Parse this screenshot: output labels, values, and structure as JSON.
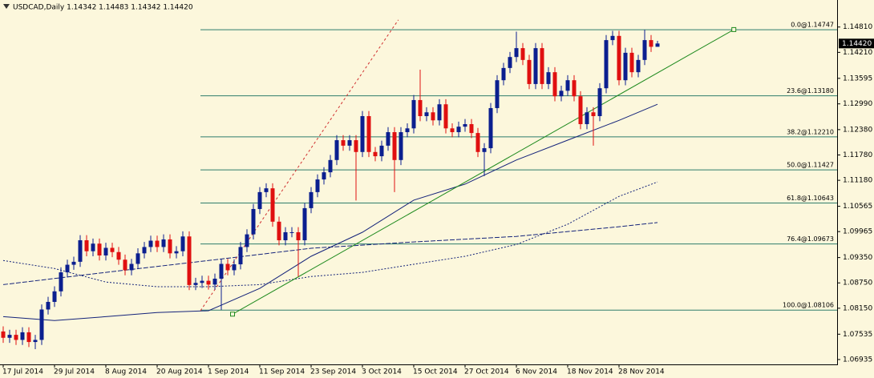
{
  "chart_data": {
    "type": "candlestick",
    "header": "USDCAD,Daily  1.14342 1.14483 1.14342 1.14420",
    "categories": [
      "17 Jul 2014",
      null,
      null,
      null,
      null,
      null,
      null,
      null,
      "29 Jul 2014",
      null,
      null,
      null,
      null,
      null,
      null,
      null,
      "8 Aug 2014",
      null,
      null,
      null,
      null,
      null,
      null,
      null,
      "20 Aug 2014",
      null,
      null,
      null,
      null,
      null,
      null,
      null,
      "1 Sep 2014",
      null,
      null,
      null,
      null,
      null,
      null,
      null,
      "11 Sep 2014",
      null,
      null,
      null,
      null,
      null,
      null,
      null,
      "23 Sep 2014",
      null,
      null,
      null,
      null,
      null,
      null,
      null,
      "3 Oct 2014",
      null,
      null,
      null,
      null,
      null,
      null,
      null,
      "15 Oct 2014",
      null,
      null,
      null,
      null,
      null,
      null,
      null,
      "27 Oct 2014",
      null,
      null,
      null,
      null,
      null,
      null,
      null,
      "6 Nov 2014",
      null,
      null,
      null,
      null,
      null,
      null,
      null,
      "18 Nov 2014",
      null,
      null,
      null,
      null,
      null,
      null,
      null,
      "28 Nov 2014",
      null,
      null,
      null,
      null,
      null,
      null
    ],
    "open": [
      1.076,
      1.0745,
      1.0752,
      1.074,
      1.0758,
      1.0735,
      1.074,
      1.0812,
      1.083,
      1.0855,
      1.09,
      1.0918,
      1.0925,
      1.0976,
      1.095,
      1.0968,
      1.094,
      1.0958,
      1.0948,
      1.093,
      1.0905,
      1.092,
      1.0945,
      1.096,
      1.0975,
      1.096,
      1.0978,
      1.0945,
      1.095,
      1.0985,
      1.087,
      1.0875,
      1.088,
      1.0871,
      1.0885,
      1.092,
      1.0905,
      1.0919,
      1.096,
      1.099,
      1.105,
      1.109,
      1.1099,
      1.102,
      1.0976,
      1.0995,
      1.0995,
      1.0976,
      1.1052,
      1.109,
      1.112,
      1.1137,
      1.1166,
      1.1213,
      1.12,
      1.1213,
      1.1185,
      1.127,
      1.1185,
      1.1175,
      1.12,
      1.1232,
      1.1166,
      1.1232,
      1.1241,
      1.1308,
      1.127,
      1.1279,
      1.126,
      1.1298,
      1.1241,
      1.1232,
      1.1245,
      1.1251,
      1.123,
      1.1185,
      1.1194,
      1.1289,
      1.1355,
      1.1384,
      1.141,
      1.1431,
      1.1403,
      1.1346,
      1.1431,
      1.1346,
      1.1374,
      1.1317,
      1.133,
      1.1355,
      1.1317,
      1.1251,
      1.1279,
      1.127,
      1.1336,
      1.145,
      1.146,
      1.1355,
      1.142,
      1.1374,
      1.1403,
      1.145,
      1.14342
    ],
    "high": [
      1.0772,
      1.0764,
      1.0764,
      1.077,
      1.077,
      1.0752,
      1.0824,
      1.0842,
      1.0867,
      1.0912,
      1.093,
      1.0937,
      1.0988,
      1.0988,
      1.098,
      1.098,
      1.097,
      1.097,
      1.096,
      1.0942,
      1.0932,
      1.0957,
      1.0972,
      1.0987,
      1.0987,
      1.099,
      1.099,
      1.0962,
      1.0997,
      1.0997,
      1.0887,
      1.0892,
      1.0892,
      1.0897,
      1.0932,
      1.0932,
      1.0931,
      1.0972,
      1.1002,
      1.1062,
      1.1102,
      1.1111,
      1.1111,
      1.1032,
      1.1007,
      1.1007,
      1.1007,
      1.1064,
      1.1102,
      1.1132,
      1.1149,
      1.1178,
      1.1225,
      1.1225,
      1.1225,
      1.1225,
      1.1282,
      1.1282,
      1.1197,
      1.1212,
      1.1244,
      1.1244,
      1.1244,
      1.1253,
      1.132,
      1.138,
      1.1291,
      1.1291,
      1.131,
      1.131,
      1.1253,
      1.1257,
      1.1263,
      1.1263,
      1.1242,
      1.1206,
      1.1301,
      1.1367,
      1.1396,
      1.1422,
      1.147,
      1.1443,
      1.1415,
      1.1443,
      1.1443,
      1.1386,
      1.1386,
      1.1342,
      1.1367,
      1.1367,
      1.1329,
      1.1291,
      1.1291,
      1.1348,
      1.1462,
      1.1472,
      1.1472,
      1.1432,
      1.1432,
      1.1415,
      1.14747,
      1.1462,
      1.14483
    ],
    "low": [
      1.0733,
      1.0733,
      1.0728,
      1.0728,
      1.0723,
      1.0718,
      1.0728,
      1.08,
      1.0818,
      1.0843,
      1.0888,
      1.0906,
      1.0913,
      1.0938,
      1.0938,
      1.0928,
      1.0928,
      1.0936,
      1.0918,
      1.0893,
      1.0893,
      1.0908,
      1.0933,
      1.0948,
      1.0948,
      1.0948,
      1.0933,
      1.0933,
      1.0938,
      1.0858,
      1.0858,
      1.0863,
      1.0859,
      1.0859,
      1.0811,
      1.0893,
      1.0893,
      1.0907,
      1.0948,
      1.0978,
      1.1038,
      1.1078,
      1.1008,
      1.0964,
      1.0964,
      1.0983,
      1.089,
      1.0964,
      1.104,
      1.1078,
      1.1108,
      1.1125,
      1.1154,
      1.1188,
      1.1188,
      1.107,
      1.1173,
      1.1173,
      1.1163,
      1.1163,
      1.1188,
      1.109,
      1.1154,
      1.122,
      1.1229,
      1.1258,
      1.1258,
      1.1248,
      1.1248,
      1.1229,
      1.122,
      1.122,
      1.1233,
      1.1218,
      1.1173,
      1.1128,
      1.1182,
      1.1277,
      1.1343,
      1.1372,
      1.1398,
      1.1391,
      1.1334,
      1.1334,
      1.1334,
      1.1334,
      1.1305,
      1.1305,
      1.1318,
      1.1305,
      1.1239,
      1.1239,
      1.12,
      1.1258,
      1.1324,
      1.1438,
      1.1343,
      1.1343,
      1.1362,
      1.1362,
      1.1391,
      1.1422,
      1.14342
    ],
    "close": [
      1.0745,
      1.0752,
      1.074,
      1.0758,
      1.0735,
      1.074,
      1.0812,
      1.083,
      1.0855,
      1.09,
      1.0918,
      1.0925,
      1.0976,
      1.095,
      1.0968,
      1.094,
      1.0958,
      1.0948,
      1.093,
      1.0905,
      1.092,
      1.0945,
      1.096,
      1.0975,
      1.096,
      1.0978,
      1.0945,
      1.095,
      1.0985,
      1.087,
      1.0875,
      1.088,
      1.0871,
      1.0885,
      1.092,
      1.0905,
      1.0919,
      1.096,
      1.099,
      1.105,
      1.109,
      1.1099,
      1.102,
      1.0976,
      1.0995,
      1.0995,
      1.0976,
      1.1052,
      1.109,
      1.112,
      1.1137,
      1.1166,
      1.1213,
      1.12,
      1.1213,
      1.1185,
      1.127,
      1.1185,
      1.1175,
      1.12,
      1.1232,
      1.1166,
      1.1232,
      1.1241,
      1.1308,
      1.127,
      1.1279,
      1.126,
      1.1298,
      1.1241,
      1.1232,
      1.1245,
      1.1251,
      1.123,
      1.1185,
      1.1194,
      1.1289,
      1.1355,
      1.1384,
      1.141,
      1.1431,
      1.1403,
      1.1346,
      1.1431,
      1.1346,
      1.1374,
      1.1317,
      1.133,
      1.1355,
      1.1317,
      1.1251,
      1.1279,
      1.127,
      1.1336,
      1.145,
      1.146,
      1.1355,
      1.142,
      1.1374,
      1.1403,
      1.145,
      1.14342,
      1.1442
    ],
    "bull_color": "#0b1f8f",
    "bear_color": "#e01010",
    "xlim": [
      -0.5,
      130
    ],
    "ylim": [
      1.0682,
      1.1545
    ],
    "yticks": [
      {
        "value": 1.1481,
        "label": "1.14810"
      },
      {
        "value": 1.1421,
        "label": "1.14210"
      },
      {
        "value": 1.13595,
        "label": "1.13595"
      },
      {
        "value": 1.1299,
        "label": "1.12990"
      },
      {
        "value": 1.1238,
        "label": "1.12380"
      },
      {
        "value": 1.1178,
        "label": "1.11780"
      },
      {
        "value": 1.1118,
        "label": "1.11180"
      },
      {
        "value": 1.10565,
        "label": "1.10565"
      },
      {
        "value": 1.09965,
        "label": "1.09965"
      },
      {
        "value": 1.0935,
        "label": "1.09350"
      },
      {
        "value": 1.0875,
        "label": "1.08750"
      },
      {
        "value": 1.0815,
        "label": "1.08150"
      },
      {
        "value": 1.07535,
        "label": "1.07535"
      },
      {
        "value": 1.06935,
        "label": "1.06935"
      }
    ],
    "last_price": {
      "value": 1.1442,
      "label": "1.14420"
    },
    "fib_start": 30.75,
    "fib_color": "#2e7d6b",
    "fib_levels": [
      {
        "value": 1.14747,
        "label": "0.0@1.14747"
      },
      {
        "value": 1.1318,
        "label": "23.6@1.13180"
      },
      {
        "value": 1.1221,
        "label": "38.2@1.12210"
      },
      {
        "value": 1.11427,
        "label": "50.0@1.11427"
      },
      {
        "value": 1.10643,
        "label": "61.8@1.10643"
      },
      {
        "value": 1.09673,
        "label": "76.4@1.09673"
      },
      {
        "value": 1.08106,
        "label": "100.0@1.08106"
      }
    ],
    "overlays": [
      {
        "color": "#14237a",
        "dash": "",
        "x": [
          0,
          8,
          16,
          24,
          32,
          40,
          48,
          56,
          64,
          72,
          80,
          88,
          96,
          102
        ],
        "values": [
          1.0795,
          1.0786,
          1.0795,
          1.0805,
          1.0809,
          1.0862,
          1.0938,
          1.0995,
          1.1071,
          1.1109,
          1.1166,
          1.1213,
          1.126,
          1.1298
        ]
      },
      {
        "color": "#14237a",
        "dash": "6 2",
        "x": [
          0,
          16,
          32,
          48,
          64,
          80,
          96,
          102
        ],
        "values": [
          1.0871,
          1.09,
          1.0928,
          1.0957,
          1.0972,
          1.0985,
          1.1008,
          1.1018
        ]
      },
      {
        "color": "#14237a",
        "dash": "2 2",
        "x": [
          0,
          8,
          16,
          24,
          32,
          40,
          48,
          56,
          64,
          72,
          80,
          88,
          96,
          102
        ],
        "values": [
          1.0928,
          1.0909,
          1.0877,
          1.0866,
          1.0866,
          1.0871,
          1.089,
          1.09,
          1.0919,
          1.0938,
          1.0966,
          1.1014,
          1.108,
          1.1114
        ]
      },
      {
        "color": "#1e8a1e",
        "dash": "",
        "marker": true,
        "x": [
          35.75,
          113.9
        ],
        "values": [
          1.0801,
          1.1475
        ]
      },
      {
        "color": "#d03030",
        "dash": "3 3",
        "x": [
          30.75,
          61.6
        ],
        "values": [
          1.0809,
          1.1498
        ]
      }
    ]
  }
}
